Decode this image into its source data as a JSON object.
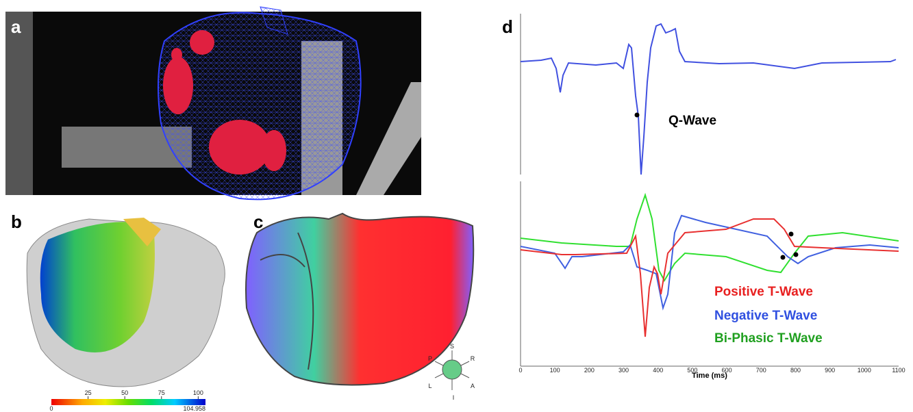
{
  "panels": {
    "a": {
      "label": "a"
    },
    "b": {
      "label": "b",
      "colorbar": {
        "ticks": [
          25,
          50,
          75,
          100
        ],
        "min": 0,
        "max": 104.958
      }
    },
    "c": {
      "label": "c",
      "orientation": [
        "S",
        "P",
        "R",
        "L",
        "A",
        "I"
      ]
    },
    "d": {
      "label": "d",
      "annotation": "Q-Wave",
      "legend": [
        "Positive T-Wave",
        "Negative T-Wave",
        "Bi-Phasic T-Wave"
      ],
      "x_label": "Time (ms)",
      "xlim": [
        0,
        1100
      ],
      "xticks": [
        0,
        100,
        200,
        300,
        400,
        500,
        600,
        700,
        800,
        900,
        1000,
        1100
      ]
    }
  }
}
